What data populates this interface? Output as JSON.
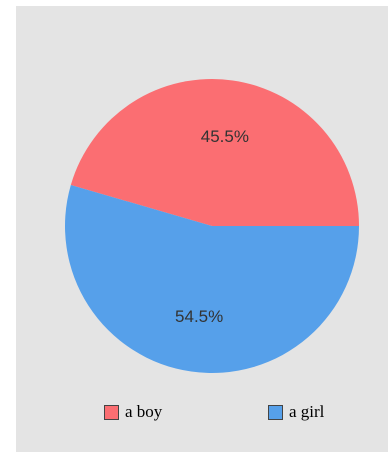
{
  "chart_data": {
    "type": "pie",
    "categories": [
      "a boy",
      "a girl"
    ],
    "values": [
      45.5,
      54.5
    ],
    "value_labels": [
      "45.5%",
      "54.5%"
    ],
    "colors": [
      "#fb6e72",
      "#56a0ea"
    ],
    "legend_position": "bottom",
    "title": ""
  }
}
